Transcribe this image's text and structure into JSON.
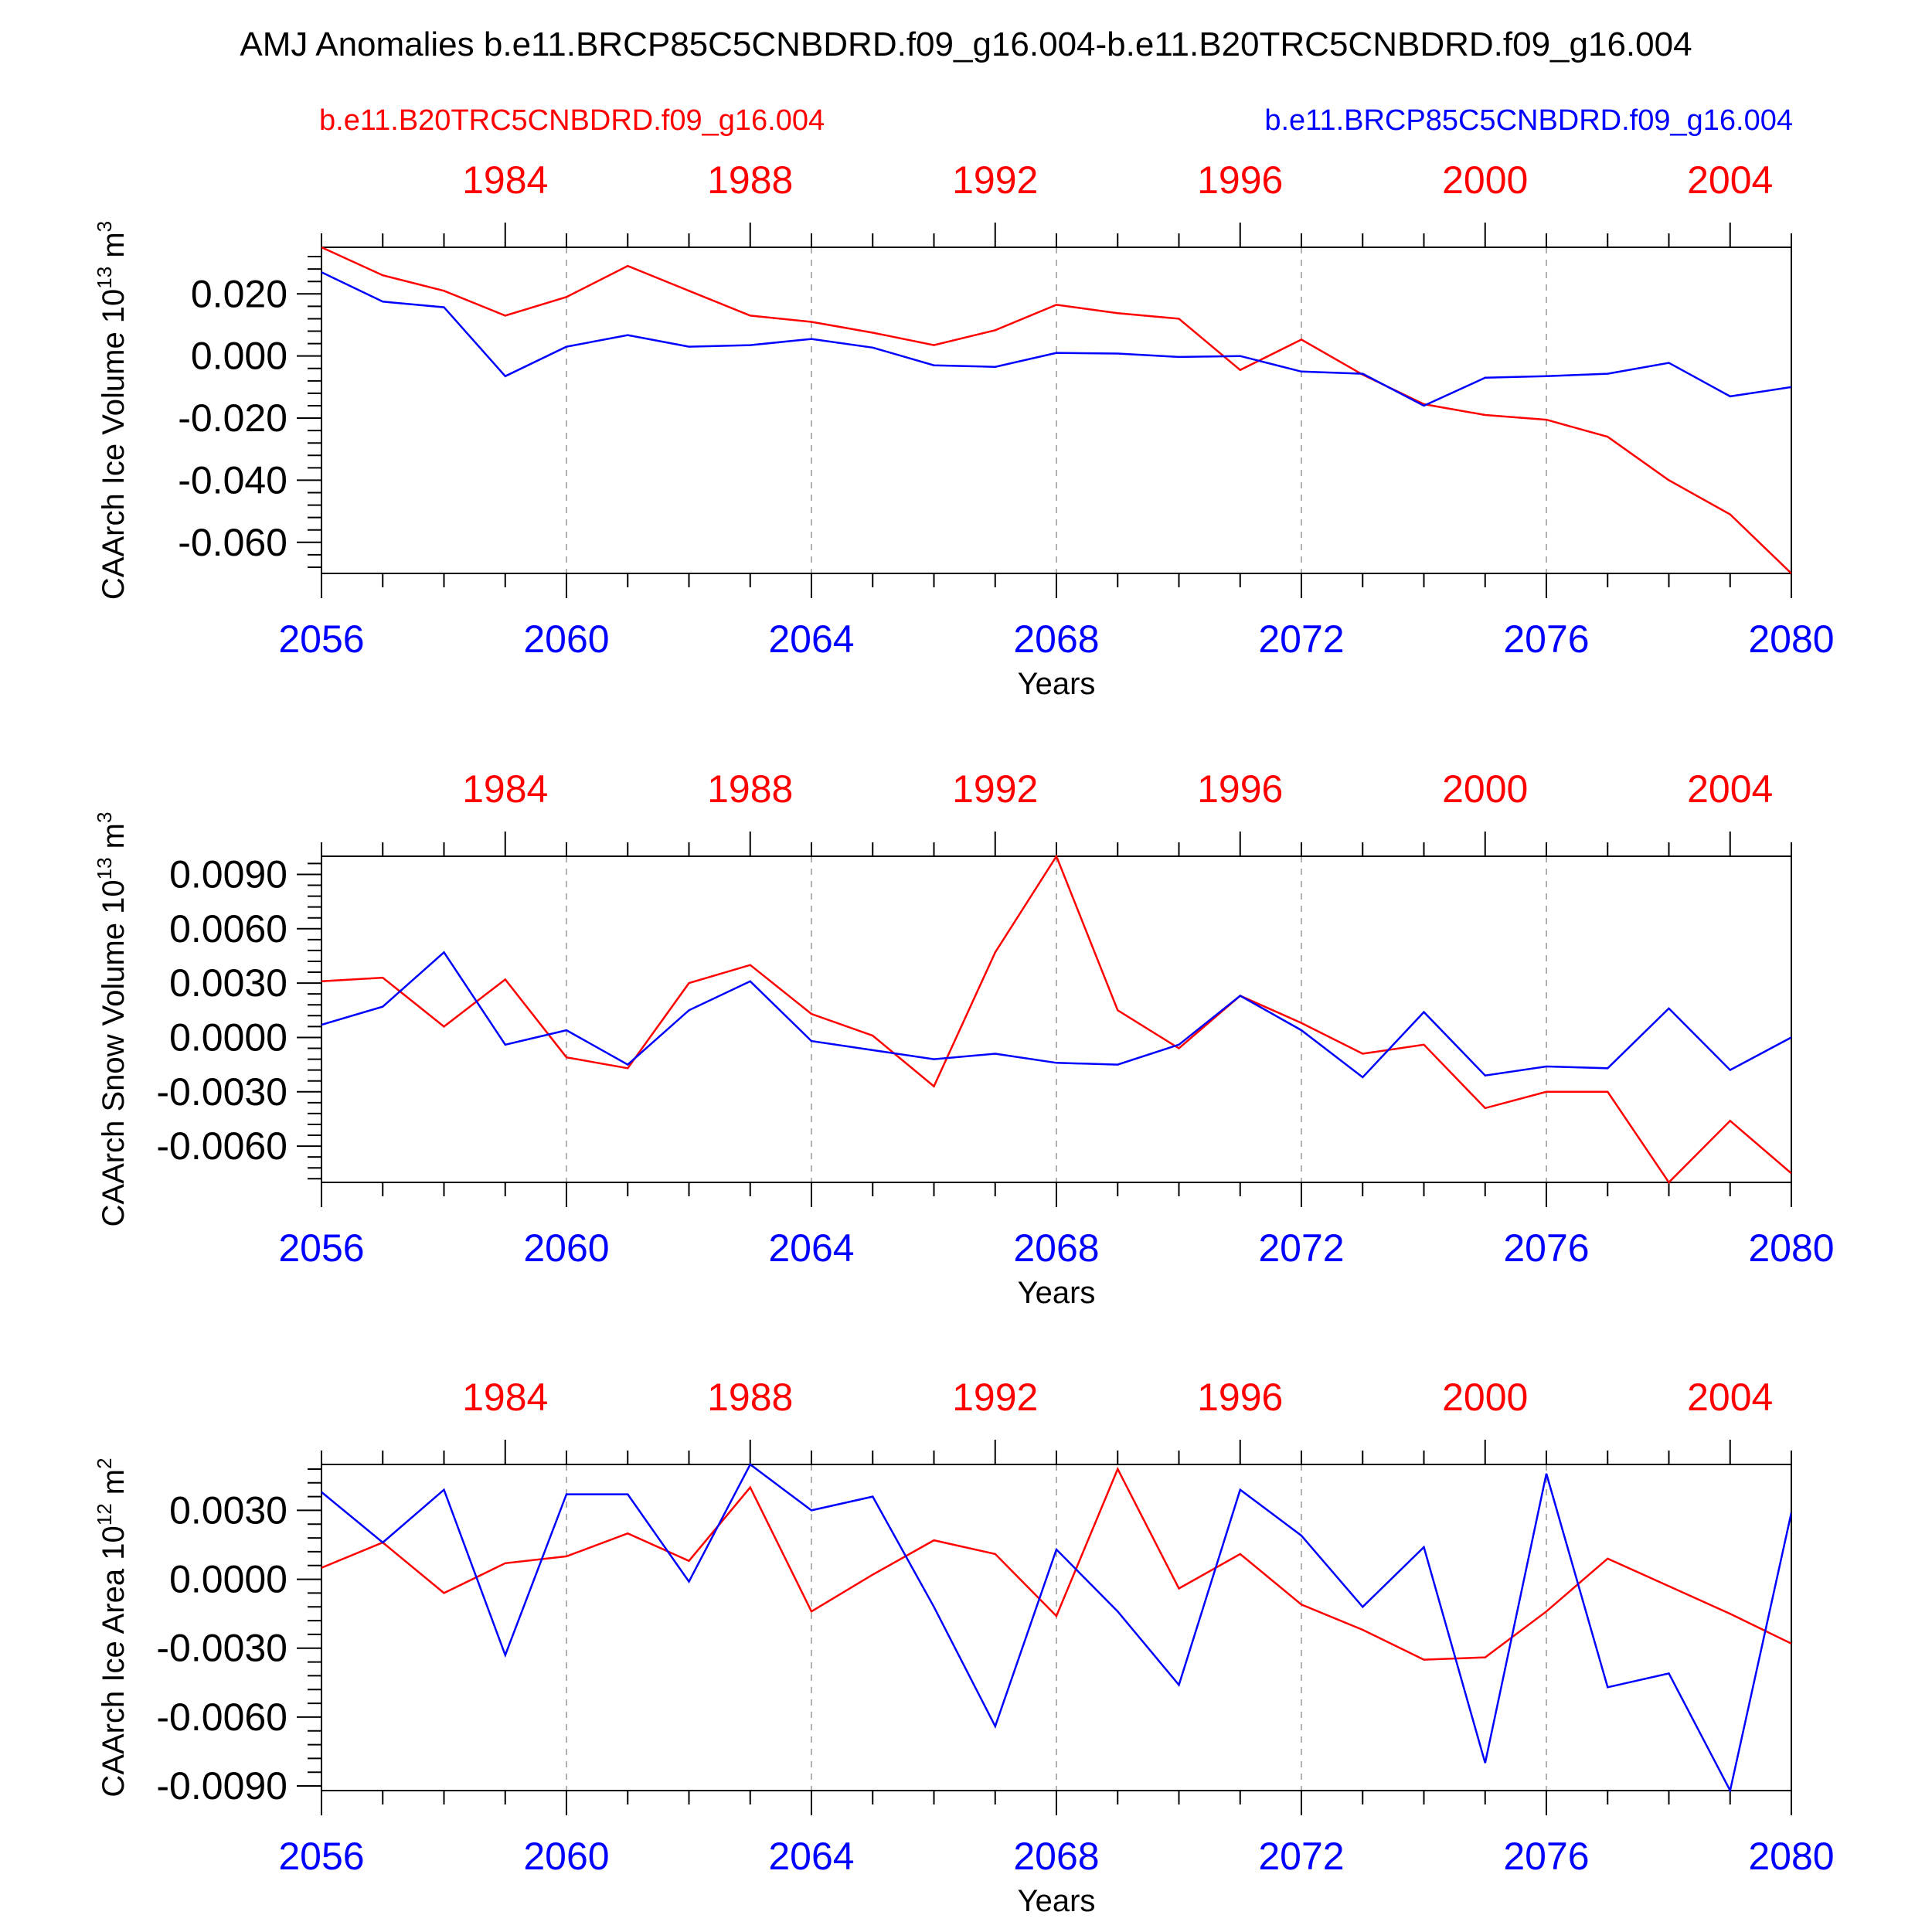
{
  "title": "AMJ Anomalies b.e11.BRCP85C5CNBDRD.f09_g16.004-b.e11.B20TRC5CNBDRD.f09_g16.004",
  "legend": {
    "left": {
      "label": "b.e11.B20TRC5CNBDRD.f09_g16.004",
      "color": "#ff0000"
    },
    "right": {
      "label": "b.e11.BRCP85C5CNBDRD.f09_g16.004",
      "color": "#0000ff"
    }
  },
  "colors": {
    "control": "#ff0000",
    "future": "#0000ff",
    "axis": "#000000",
    "grid": "#999999"
  },
  "chart_data": [
    {
      "type": "line",
      "ylabel": "CAArch Ice Volume 10",
      "ylabel_sup": "13",
      "ylabel_unit": "m",
      "ylabel_unit_sup": "3",
      "xlabel": "Years",
      "ylim": [
        -0.07,
        0.035
      ],
      "yticks": [
        0.02,
        0.0,
        -0.02,
        -0.04,
        -0.06
      ],
      "ytick_labels": [
        "0.020",
        "0.000",
        "-0.020",
        "-0.040",
        "-0.060"
      ],
      "bottom_axis": {
        "range": [
          2056,
          2080
        ],
        "ticks": [
          2056,
          2060,
          2064,
          2068,
          2072,
          2076,
          2080
        ],
        "labels": [
          "2056",
          "2060",
          "2064",
          "2068",
          "2072",
          "2076",
          "2080"
        ]
      },
      "top_axis": {
        "ticks": [
          1984,
          1988,
          1992,
          1996,
          2000,
          2004
        ],
        "labels": [
          "1984",
          "1988",
          "1992",
          "1996",
          "2000",
          "2004"
        ]
      },
      "x": [
        2056,
        2057,
        2058,
        2059,
        2060,
        2061,
        2062,
        2063,
        2064,
        2065,
        2066,
        2067,
        2068,
        2069,
        2070,
        2071,
        2072,
        2073,
        2074,
        2075,
        2076,
        2077,
        2078,
        2079,
        2080
      ],
      "series": [
        {
          "name": "b.e11.B20TRC5CNBDRD.f09_g16.004",
          "color": "#ff0000",
          "values": [
            0.035,
            0.026,
            0.021,
            0.013,
            0.019,
            0.029,
            0.021,
            0.013,
            0.011,
            0.0075,
            0.0035,
            0.0083,
            0.0165,
            0.0138,
            0.012,
            -0.0045,
            0.0053,
            -0.006,
            -0.0155,
            -0.019,
            -0.0205,
            -0.026,
            -0.04,
            -0.051,
            -0.07
          ]
        },
        {
          "name": "b.e11.BRCP85C5CNBDRD.f09_g16.004",
          "color": "#0000ff",
          "values": [
            0.027,
            0.0175,
            0.0157,
            -0.0065,
            0.003,
            0.0067,
            0.003,
            0.0035,
            0.0055,
            0.0027,
            -0.003,
            -0.0035,
            0.001,
            0.0008,
            -0.0003,
            0.0,
            -0.005,
            -0.0057,
            -0.016,
            -0.007,
            -0.0065,
            -0.0057,
            -0.0022,
            -0.013,
            -0.01
          ]
        }
      ]
    },
    {
      "type": "line",
      "ylabel": "CAArch Snow Volume 10",
      "ylabel_sup": "13",
      "ylabel_unit": "m",
      "ylabel_unit_sup": "3",
      "xlabel": "Years",
      "ylim": [
        -0.008,
        0.01
      ],
      "yticks": [
        0.009,
        0.006,
        0.003,
        0.0,
        -0.003,
        -0.006
      ],
      "ytick_labels": [
        "0.0090",
        "0.0060",
        "0.0030",
        "0.0000",
        "-0.0030",
        "-0.0060"
      ],
      "bottom_axis": {
        "range": [
          2056,
          2080
        ],
        "ticks": [
          2056,
          2060,
          2064,
          2068,
          2072,
          2076,
          2080
        ],
        "labels": [
          "2056",
          "2060",
          "2064",
          "2068",
          "2072",
          "2076",
          "2080"
        ]
      },
      "top_axis": {
        "ticks": [
          1984,
          1988,
          1992,
          1996,
          2000,
          2004
        ],
        "labels": [
          "1984",
          "1988",
          "1992",
          "1996",
          "2000",
          "2004"
        ]
      },
      "x": [
        2056,
        2057,
        2058,
        2059,
        2060,
        2061,
        2062,
        2063,
        2064,
        2065,
        2066,
        2067,
        2068,
        2069,
        2070,
        2071,
        2072,
        2073,
        2074,
        2075,
        2076,
        2077,
        2078,
        2079,
        2080
      ],
      "series": [
        {
          "name": "b.e11.B20TRC5CNBDRD.f09_g16.004",
          "color": "#ff0000",
          "values": [
            0.0031,
            0.0033,
            0.0006,
            0.0032,
            -0.0011,
            -0.0017,
            0.003,
            0.004,
            0.0013,
            0.0001,
            -0.0027,
            0.0047,
            0.01,
            0.0015,
            -0.0006,
            0.0023,
            0.0008,
            -0.0009,
            -0.0004,
            -0.0039,
            -0.003,
            -0.003,
            -0.008,
            -0.0046,
            -0.0075
          ]
        },
        {
          "name": "b.e11.BRCP85C5CNBDRD.f09_g16.004",
          "color": "#0000ff",
          "values": [
            0.0007,
            0.0017,
            0.0047,
            -0.0004,
            0.0004,
            -0.0015,
            0.0015,
            0.0031,
            -0.0002,
            -0.0007,
            -0.0012,
            -0.0009,
            -0.0014,
            -0.0015,
            -0.0004,
            0.0023,
            0.0004,
            -0.0022,
            0.0014,
            -0.0021,
            -0.0016,
            -0.0017,
            0.0016,
            -0.0018,
            0.0
          ]
        }
      ]
    },
    {
      "type": "line",
      "ylabel": "CAArch Ice Area 10",
      "ylabel_sup": "12",
      "ylabel_unit": "m",
      "ylabel_unit_sup": "2",
      "xlabel": "Years",
      "ylim": [
        -0.0092,
        0.005
      ],
      "yticks": [
        0.003,
        0.0,
        -0.003,
        -0.006,
        -0.009
      ],
      "ytick_labels": [
        "0.0030",
        "0.0000",
        "-0.0030",
        "-0.0060",
        "-0.0090"
      ],
      "bottom_axis": {
        "range": [
          2056,
          2080
        ],
        "ticks": [
          2056,
          2060,
          2064,
          2068,
          2072,
          2076,
          2080
        ],
        "labels": [
          "2056",
          "2060",
          "2064",
          "2068",
          "2072",
          "2076",
          "2080"
        ]
      },
      "top_axis": {
        "ticks": [
          1984,
          1988,
          1992,
          1996,
          2000,
          2004
        ],
        "labels": [
          "1984",
          "1988",
          "1992",
          "1996",
          "2000",
          "2004"
        ]
      },
      "x": [
        2056,
        2057,
        2058,
        2059,
        2060,
        2061,
        2062,
        2063,
        2064,
        2065,
        2066,
        2067,
        2068,
        2069,
        2070,
        2071,
        2072,
        2073,
        2074,
        2075,
        2076,
        2077,
        2078,
        2079,
        2080
      ],
      "series": [
        {
          "name": "b.e11.B20TRC5CNBDRD.f09_g16.004",
          "color": "#ff0000",
          "values": [
            0.0005,
            0.0016,
            -0.0006,
            0.0007,
            0.001,
            0.002,
            0.0008,
            0.004,
            -0.0014,
            0.0002,
            0.0017,
            0.0011,
            -0.0016,
            0.0048,
            -0.0004,
            0.0011,
            -0.0011,
            -0.0022,
            -0.0035,
            -0.0034,
            -0.0014,
            0.0009,
            -0.0003,
            -0.0015,
            -0.0028
          ]
        },
        {
          "name": "b.e11.BRCP85C5CNBDRD.f09_g16.004",
          "color": "#0000ff",
          "values": [
            0.0038,
            0.0016,
            0.0039,
            -0.0033,
            0.0037,
            0.0037,
            -0.0001,
            0.005,
            0.003,
            0.0036,
            -0.0012,
            -0.0064,
            0.0013,
            -0.0014,
            -0.0046,
            0.0039,
            0.0019,
            -0.0012,
            0.0014,
            -0.008,
            0.0046,
            -0.0047,
            -0.0041,
            -0.0092,
            0.0029
          ]
        }
      ]
    }
  ]
}
